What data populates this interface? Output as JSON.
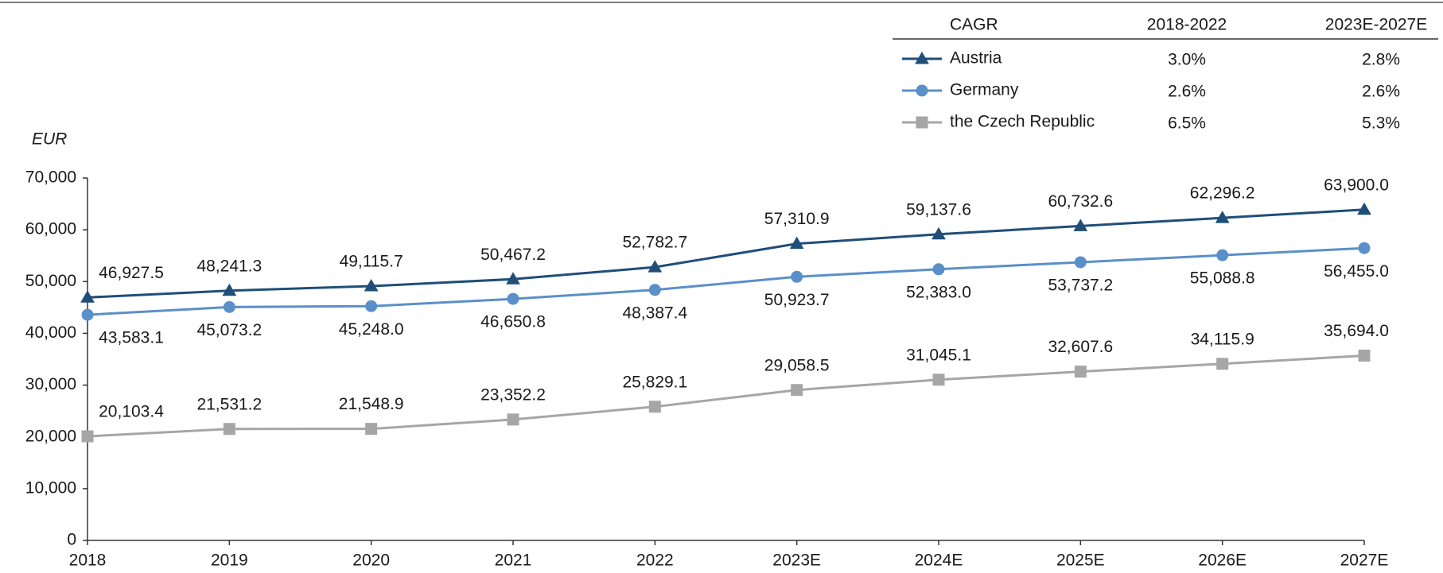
{
  "chart_data": {
    "type": "line",
    "y_label": "EUR",
    "categories": [
      "2018",
      "2019",
      "2020",
      "2021",
      "2022",
      "2023E",
      "2024E",
      "2025E",
      "2026E",
      "2027E"
    ],
    "ylim": [
      0,
      70000
    ],
    "yticks": [
      0,
      {
        "value": 10000,
        "label": "10,000"
      },
      {
        "value": 20000,
        "label": "20,000"
      },
      {
        "value": 30000,
        "label": "30,000"
      },
      {
        "value": 40000,
        "label": "40,000"
      },
      {
        "value": 50000,
        "label": "50,000"
      },
      {
        "value": 60000,
        "label": "60,000"
      },
      {
        "value": 70000,
        "label": "70,000"
      }
    ],
    "series": [
      {
        "name": "Austria",
        "color": "#1f4e79",
        "marker": "triangle",
        "label_color": "#1a2e45",
        "label_side": "above",
        "values": [
          46927.5,
          48241.3,
          49115.7,
          50467.2,
          52782.7,
          57310.9,
          59137.6,
          60732.6,
          62296.2,
          63900.0
        ],
        "value_labels": [
          "46,927.5",
          "48,241.3",
          "49,115.7",
          "50,467.2",
          "52,782.7",
          "57,310.9",
          "59,137.6",
          "60,732.6",
          "62,296.2",
          "63,900.0"
        ]
      },
      {
        "name": "Germany",
        "color": "#5b8fc9",
        "marker": "circle",
        "label_color": "#2e6fad",
        "label_side": "below",
        "values": [
          43583.1,
          45073.2,
          45248.0,
          46650.8,
          48387.4,
          50923.7,
          52383.0,
          53737.2,
          55088.8,
          56455.0
        ],
        "value_labels": [
          "43,583.1",
          "45,073.2",
          "45,248.0",
          "46,650.8",
          "48,387.4",
          "50,923.7",
          "52,383.0",
          "53,737.2",
          "55,088.8",
          "56,455.0"
        ]
      },
      {
        "name": "the Czech Republic",
        "color": "#a6a6a6",
        "marker": "square",
        "label_color": "#8c8c8c",
        "label_side": "above",
        "values": [
          20103.4,
          21531.2,
          21548.9,
          23352.2,
          25829.1,
          29058.5,
          31045.1,
          32607.6,
          34115.9,
          35694.0
        ],
        "value_labels": [
          "20,103.4",
          "21,531.2",
          "21,548.9",
          "23,352.2",
          "25,829.1",
          "29,058.5",
          "31,045.1",
          "32,607.6",
          "34,115.9",
          "35,694.0"
        ]
      }
    ],
    "cagr_table": {
      "headers": [
        "CAGR",
        "2018-2022",
        "2023E-2027E"
      ],
      "rows": [
        [
          "3.0%",
          "2.8%"
        ],
        [
          "2.6%",
          "2.6%"
        ],
        [
          "6.5%",
          "5.3%"
        ]
      ]
    }
  }
}
